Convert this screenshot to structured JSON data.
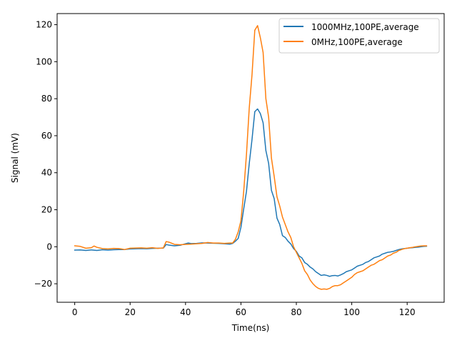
{
  "chart_data": {
    "type": "line",
    "title": "",
    "xlabel": "Time(ns)",
    "ylabel": "Signal (mV)",
    "xlim": [
      -6.35,
      133.35
    ],
    "ylim": [
      -30,
      126
    ],
    "xticks": [
      0,
      20,
      40,
      60,
      80,
      100,
      120
    ],
    "yticks": [
      -20,
      0,
      20,
      40,
      60,
      80,
      100,
      120
    ],
    "xtick_labels": [
      "0",
      "20",
      "40",
      "60",
      "80",
      "100",
      "120"
    ],
    "ytick_labels": [
      "−20",
      "0",
      "20",
      "40",
      "60",
      "80",
      "100",
      "120"
    ],
    "grid": false,
    "legend_position": "top-right",
    "series": [
      {
        "name": "1000MHz,100PE,average",
        "color": "#1f77b4",
        "x": [
          0,
          2,
          4,
          6,
          8,
          10,
          12,
          14,
          16,
          18,
          20,
          22,
          24,
          26,
          28,
          30,
          32,
          33,
          34,
          36,
          38,
          40,
          41,
          42,
          44,
          46,
          48,
          50,
          52,
          54,
          56,
          57,
          58,
          59,
          60,
          61,
          62,
          63,
          64,
          65,
          66,
          67,
          68,
          69,
          70,
          71,
          72,
          73,
          74,
          75,
          76,
          77,
          78,
          79,
          80,
          81,
          82,
          83,
          84,
          85,
          86,
          87,
          88,
          89,
          90,
          91,
          92,
          93,
          94,
          95,
          96,
          97,
          98,
          99,
          100,
          101,
          102,
          103,
          104,
          105,
          106,
          107,
          108,
          109,
          110,
          111,
          112,
          113,
          114,
          115,
          116,
          117,
          118,
          119,
          120,
          121,
          122,
          123,
          124,
          125,
          126,
          127
        ],
        "values": [
          -1.8,
          -1.7,
          -2.0,
          -1.7,
          -2.0,
          -1.6,
          -1.8,
          -1.6,
          -1.5,
          -1.5,
          -1.2,
          -1.1,
          -1.0,
          -1.1,
          -0.9,
          -0.8,
          -0.7,
          1.2,
          0.9,
          0.5,
          0.8,
          1.6,
          2.0,
          1.7,
          1.8,
          2.1,
          2.0,
          1.9,
          1.8,
          1.6,
          1.4,
          1.8,
          3.0,
          4.5,
          10.5,
          20.5,
          30.0,
          45.0,
          58.0,
          73.0,
          74.5,
          72.0,
          67.0,
          52.0,
          45.0,
          30.5,
          26.0,
          15.5,
          12.0,
          6.0,
          5.0,
          3.0,
          1.5,
          -1.0,
          -2.5,
          -5.0,
          -6.0,
          -8.5,
          -9.5,
          -11.0,
          -12.0,
          -13.5,
          -14.5,
          -15.5,
          -15.2,
          -15.5,
          -16.0,
          -15.6,
          -15.5,
          -15.8,
          -15.2,
          -14.5,
          -13.5,
          -13.0,
          -12.5,
          -11.5,
          -10.5,
          -10.0,
          -9.5,
          -8.5,
          -8.0,
          -7.0,
          -6.0,
          -5.5,
          -5.0,
          -4.0,
          -3.5,
          -3.0,
          -2.8,
          -2.5,
          -2.0,
          -1.5,
          -1.2,
          -1.0,
          -0.8,
          -0.6,
          -0.5,
          -0.3,
          -0.2,
          0.0,
          0.2,
          0.3
        ]
      },
      {
        "name": "0MHz,100PE,average",
        "color": "#ff7f0e",
        "x": [
          0,
          2,
          4,
          6,
          7,
          8,
          10,
          12,
          14,
          16,
          18,
          20,
          22,
          24,
          26,
          28,
          30,
          32,
          33,
          34,
          36,
          38,
          40,
          42,
          44,
          46,
          48,
          50,
          52,
          54,
          56,
          57,
          58,
          59,
          60,
          61,
          62,
          63,
          64,
          65,
          66,
          67,
          68,
          69,
          70,
          71,
          72,
          73,
          74,
          75,
          76,
          77,
          78,
          79,
          80,
          81,
          82,
          83,
          84,
          85,
          86,
          87,
          88,
          89,
          90,
          91,
          92,
          93,
          94,
          95,
          96,
          97,
          98,
          99,
          100,
          101,
          102,
          103,
          104,
          105,
          106,
          107,
          108,
          109,
          110,
          111,
          112,
          113,
          114,
          115,
          116,
          117,
          118,
          119,
          120,
          121,
          122,
          123,
          124,
          125,
          126,
          127
        ],
        "values": [
          0.5,
          0.2,
          -0.8,
          -0.5,
          0.4,
          -0.3,
          -1.0,
          -1.2,
          -0.9,
          -1.0,
          -1.5,
          -0.8,
          -0.7,
          -0.6,
          -0.8,
          -0.5,
          -0.9,
          -0.6,
          2.8,
          2.5,
          1.3,
          1.1,
          1.3,
          1.4,
          1.6,
          1.8,
          2.3,
          2.0,
          2.0,
          1.8,
          2.0,
          2.0,
          4.0,
          8.0,
          14.0,
          30.0,
          50.0,
          75.0,
          93.0,
          117.0,
          119.5,
          113.0,
          105.0,
          80.0,
          70.0,
          48.0,
          38.0,
          27.0,
          22.0,
          16.0,
          12.0,
          8.0,
          5.0,
          0.0,
          -3.0,
          -6.0,
          -9.0,
          -13.0,
          -15.0,
          -18.0,
          -20.0,
          -21.5,
          -22.5,
          -23.0,
          -22.8,
          -23.0,
          -22.5,
          -21.5,
          -21.0,
          -21.0,
          -20.5,
          -19.5,
          -18.5,
          -17.5,
          -16.5,
          -15.0,
          -14.0,
          -13.5,
          -13.0,
          -12.0,
          -11.0,
          -10.0,
          -9.5,
          -8.5,
          -7.5,
          -7.0,
          -6.0,
          -5.0,
          -4.5,
          -3.5,
          -3.0,
          -2.0,
          -1.5,
          -1.0,
          -0.8,
          -0.5,
          -0.3,
          0.0,
          0.2,
          0.4,
          0.5,
          0.5
        ]
      }
    ]
  }
}
